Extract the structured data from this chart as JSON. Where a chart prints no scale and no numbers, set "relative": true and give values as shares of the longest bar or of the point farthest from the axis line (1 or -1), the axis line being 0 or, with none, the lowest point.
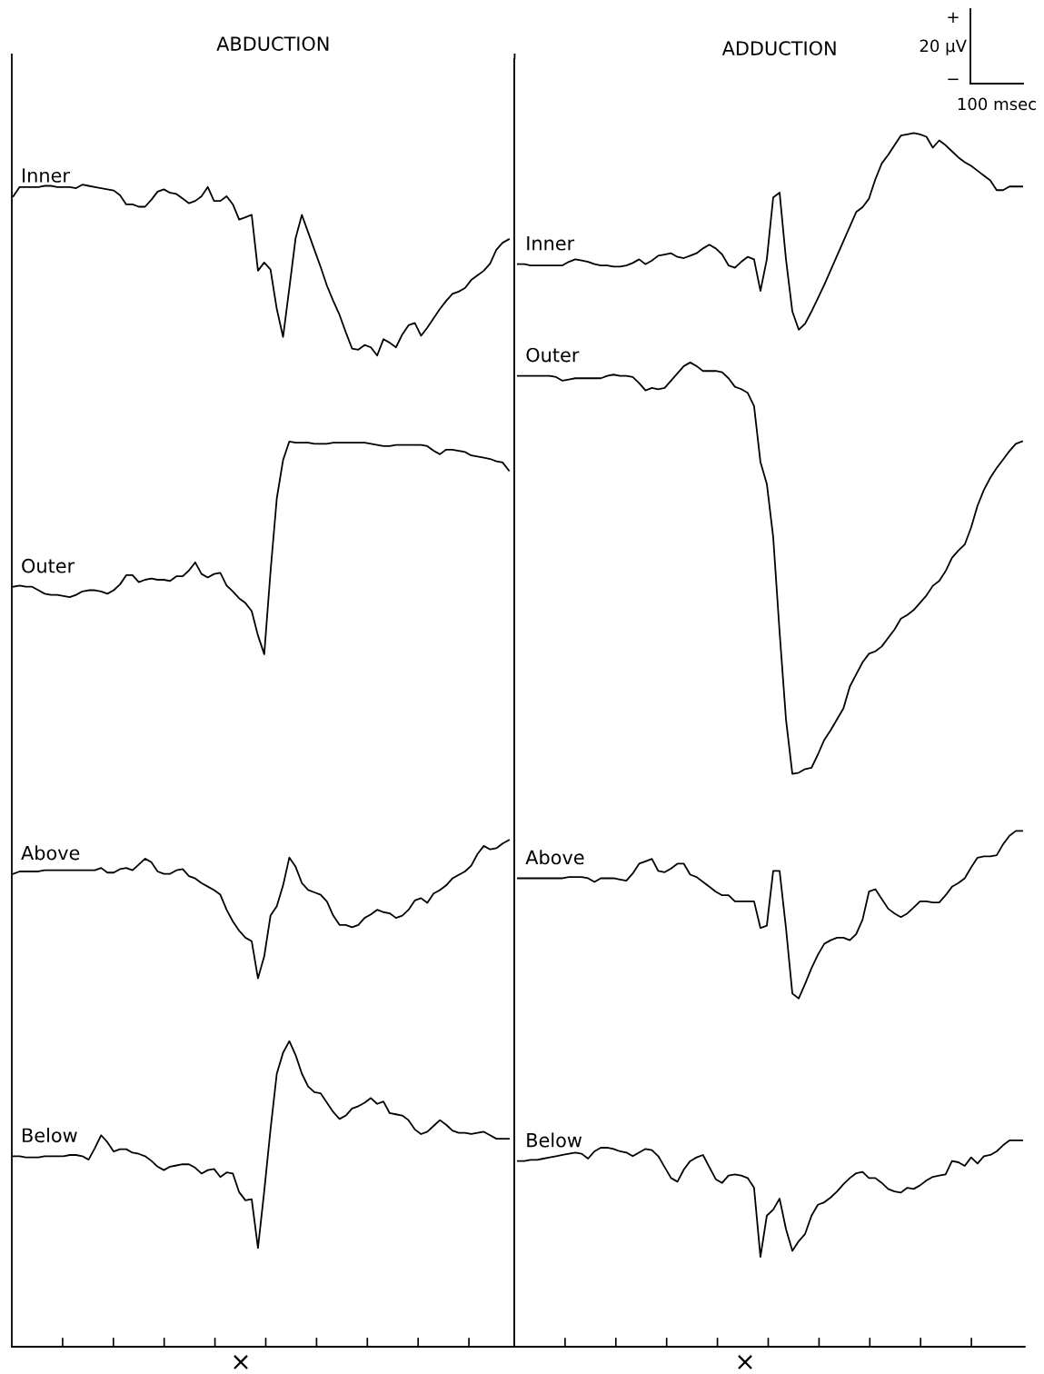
{
  "chart_data": [
    {
      "type": "line",
      "title": "ABDUCTION",
      "relative": true,
      "marker": "none",
      "line_style": "solid",
      "annotations": [
        "×"
      ],
      "categories": [
        null,
        null,
        null,
        null,
        null,
        null,
        null,
        null,
        null,
        null,
        null,
        null,
        null,
        null,
        null,
        null,
        null,
        null,
        null,
        null,
        null,
        null,
        null,
        null,
        null,
        null,
        null,
        null,
        null,
        null,
        null,
        null,
        null,
        null,
        null,
        null,
        null,
        null,
        null,
        null,
        null,
        null,
        null,
        null,
        null,
        null,
        null,
        null,
        null,
        null,
        null,
        null,
        null,
        null,
        null,
        null,
        null,
        null,
        null,
        null,
        null,
        null,
        null,
        null,
        null,
        null,
        null,
        null,
        null,
        null,
        null,
        null,
        null,
        null,
        null,
        null,
        null,
        null,
        null,
        null
      ],
      "series": [
        {
          "name": "Inner",
          "color": "#000000",
          "values": [
            0.99,
            0.998,
            0.998,
            0.998,
            0.998,
            0.999,
            0.999,
            0.998,
            0.998,
            0.998,
            0.997,
            1.0,
            0.999,
            0.998,
            0.997,
            0.996,
            0.995,
            0.991,
            0.983,
            0.983,
            0.981,
            0.981,
            0.987,
            0.994,
            0.996,
            0.993,
            0.992,
            0.988,
            0.984,
            0.986,
            0.99,
            0.998,
            0.986,
            0.986,
            0.99,
            0.983,
            0.97,
            0.972,
            0.974,
            0.926,
            0.933,
            0.927,
            0.893,
            0.869,
            0.911,
            0.954,
            0.974,
            0.959,
            0.944,
            0.929,
            0.913,
            0.9,
            0.888,
            0.873,
            0.859,
            0.858,
            0.862,
            0.86,
            0.853,
            0.867,
            0.864,
            0.86,
            0.871,
            0.879,
            0.881,
            0.87,
            0.877,
            0.885,
            0.893,
            0.9,
            0.906,
            0.908,
            0.911,
            0.918,
            0.922,
            0.926,
            0.932,
            0.944,
            0.95,
            0.953
          ]
        },
        {
          "name": "Outer",
          "color": "#000000",
          "values": [
            0.654,
            0.655,
            0.654,
            0.654,
            0.651,
            0.648,
            0.647,
            0.647,
            0.646,
            0.645,
            0.647,
            0.65,
            0.651,
            0.651,
            0.65,
            0.648,
            0.651,
            0.656,
            0.664,
            0.664,
            0.658,
            0.66,
            0.661,
            0.66,
            0.66,
            0.659,
            0.663,
            0.663,
            0.668,
            0.675,
            0.665,
            0.662,
            0.665,
            0.666,
            0.655,
            0.65,
            0.644,
            0.64,
            0.633,
            0.612,
            0.596,
            0.667,
            0.73,
            0.763,
            0.779,
            0.778,
            0.778,
            0.778,
            0.777,
            0.777,
            0.777,
            0.778,
            0.778,
            0.778,
            0.778,
            0.778,
            0.778,
            0.777,
            0.776,
            0.775,
            0.775,
            0.776,
            0.776,
            0.776,
            0.776,
            0.776,
            0.775,
            0.771,
            0.768,
            0.772,
            0.772,
            0.771,
            0.77,
            0.767,
            0.766,
            0.765,
            0.764,
            0.762,
            0.761,
            0.754
          ]
        },
        {
          "name": "Above",
          "color": "#000000",
          "values": [
            0.407,
            0.409,
            0.409,
            0.409,
            0.409,
            0.41,
            0.41,
            0.41,
            0.41,
            0.41,
            0.41,
            0.41,
            0.41,
            0.41,
            0.412,
            0.408,
            0.408,
            0.411,
            0.412,
            0.41,
            0.415,
            0.42,
            0.417,
            0.409,
            0.407,
            0.407,
            0.41,
            0.411,
            0.405,
            0.403,
            0.399,
            0.396,
            0.393,
            0.389,
            0.376,
            0.366,
            0.358,
            0.352,
            0.349,
            0.317,
            0.336,
            0.371,
            0.379,
            0.397,
            0.421,
            0.413,
            0.399,
            0.393,
            0.391,
            0.389,
            0.383,
            0.371,
            0.363,
            0.363,
            0.361,
            0.363,
            0.369,
            0.372,
            0.376,
            0.374,
            0.373,
            0.369,
            0.371,
            0.376,
            0.384,
            0.386,
            0.382,
            0.39,
            0.393,
            0.397,
            0.403,
            0.406,
            0.409,
            0.414,
            0.424,
            0.431,
            0.428,
            0.429,
            0.433,
            0.436
          ]
        },
        {
          "name": "Below",
          "color": "#000000",
          "values": [
            0.164,
            0.164,
            0.163,
            0.163,
            0.163,
            0.164,
            0.164,
            0.164,
            0.164,
            0.165,
            0.165,
            0.164,
            0.161,
            0.171,
            0.182,
            0.176,
            0.168,
            0.17,
            0.17,
            0.167,
            0.166,
            0.164,
            0.16,
            0.155,
            0.152,
            0.155,
            0.156,
            0.157,
            0.157,
            0.154,
            0.149,
            0.152,
            0.153,
            0.146,
            0.15,
            0.149,
            0.133,
            0.126,
            0.127,
            0.085,
            0.134,
            0.187,
            0.235,
            0.253,
            0.263,
            0.251,
            0.235,
            0.224,
            0.219,
            0.218,
            0.21,
            0.202,
            0.196,
            0.199,
            0.205,
            0.207,
            0.21,
            0.214,
            0.209,
            0.211,
            0.201,
            0.2,
            0.199,
            0.195,
            0.187,
            0.183,
            0.185,
            0.19,
            0.195,
            0.191,
            0.186,
            0.184,
            0.184,
            0.183,
            0.184,
            0.185,
            0.182,
            0.179,
            0.179,
            0.179
          ]
        }
      ]
    },
    {
      "type": "line",
      "title": "ADDUCTION",
      "relative": true,
      "marker": "none",
      "line_style": "solid",
      "annotations": [
        "×",
        "+",
        "20 µV",
        "−",
        "100 msec"
      ],
      "categories": [
        null,
        null,
        null,
        null,
        null,
        null,
        null,
        null,
        null,
        null,
        null,
        null,
        null,
        null,
        null,
        null,
        null,
        null,
        null,
        null,
        null,
        null,
        null,
        null,
        null,
        null,
        null,
        null,
        null,
        null,
        null,
        null,
        null,
        null,
        null,
        null,
        null,
        null,
        null,
        null,
        null,
        null,
        null,
        null,
        null,
        null,
        null,
        null,
        null,
        null,
        null,
        null,
        null,
        null,
        null,
        null,
        null,
        null,
        null,
        null,
        null,
        null,
        null,
        null,
        null,
        null,
        null,
        null,
        null,
        null,
        null,
        null,
        null,
        null,
        null,
        null,
        null,
        null,
        null,
        null
      ],
      "series": [
        {
          "name": "Inner",
          "color": "#000000",
          "values": [
            0.892,
            0.892,
            0.891,
            0.891,
            0.891,
            0.891,
            0.891,
            0.891,
            0.894,
            0.896,
            0.895,
            0.894,
            0.892,
            0.891,
            0.891,
            0.89,
            0.89,
            0.891,
            0.893,
            0.896,
            0.892,
            0.895,
            0.899,
            0.9,
            0.901,
            0.898,
            0.897,
            0.899,
            0.901,
            0.905,
            0.908,
            0.905,
            0.9,
            0.891,
            0.889,
            0.894,
            0.898,
            0.896,
            0.87,
            0.896,
            0.947,
            0.951,
            0.896,
            0.853,
            0.838,
            0.843,
            0.853,
            0.864,
            0.875,
            0.887,
            0.899,
            0.911,
            0.923,
            0.935,
            0.939,
            0.946,
            0.962,
            0.975,
            0.982,
            0.99,
            0.998,
            0.999,
            1.0,
            0.999,
            0.997,
            0.988,
            0.994,
            0.99,
            0.985,
            0.98,
            0.976,
            0.973,
            0.969,
            0.965,
            0.961,
            0.953,
            0.953,
            0.956,
            0.956,
            0.956
          ]
        },
        {
          "name": "Outer",
          "color": "#000000",
          "values": [
            0.8,
            0.8,
            0.8,
            0.8,
            0.8,
            0.8,
            0.799,
            0.796,
            0.797,
            0.798,
            0.798,
            0.798,
            0.798,
            0.798,
            0.8,
            0.801,
            0.8,
            0.8,
            0.799,
            0.794,
            0.788,
            0.79,
            0.789,
            0.79,
            0.796,
            0.802,
            0.808,
            0.811,
            0.808,
            0.804,
            0.804,
            0.804,
            0.803,
            0.798,
            0.791,
            0.789,
            0.786,
            0.775,
            0.729,
            0.711,
            0.667,
            0.589,
            0.517,
            0.472,
            0.473,
            0.476,
            0.477,
            0.488,
            0.5,
            0.508,
            0.517,
            0.526,
            0.544,
            0.554,
            0.564,
            0.571,
            0.573,
            0.577,
            0.584,
            0.591,
            0.6,
            0.603,
            0.607,
            0.613,
            0.619,
            0.627,
            0.631,
            0.639,
            0.65,
            0.656,
            0.661,
            0.675,
            0.693,
            0.706,
            0.716,
            0.724,
            0.731,
            0.738,
            0.744,
            0.746
          ]
        },
        {
          "name": "Above",
          "color": "#000000",
          "values": [
            0.386,
            0.386,
            0.386,
            0.386,
            0.386,
            0.386,
            0.386,
            0.386,
            0.387,
            0.387,
            0.387,
            0.386,
            0.383,
            0.386,
            0.386,
            0.386,
            0.385,
            0.384,
            0.39,
            0.398,
            0.4,
            0.402,
            0.392,
            0.391,
            0.394,
            0.398,
            0.398,
            0.389,
            0.387,
            0.383,
            0.379,
            0.375,
            0.372,
            0.372,
            0.367,
            0.367,
            0.367,
            0.367,
            0.345,
            0.347,
            0.392,
            0.392,
            0.345,
            0.291,
            0.287,
            0.299,
            0.312,
            0.323,
            0.332,
            0.335,
            0.337,
            0.337,
            0.335,
            0.34,
            0.352,
            0.375,
            0.377,
            0.369,
            0.361,
            0.357,
            0.354,
            0.357,
            0.362,
            0.367,
            0.367,
            0.366,
            0.366,
            0.372,
            0.379,
            0.382,
            0.386,
            0.395,
            0.403,
            0.404,
            0.404,
            0.405,
            0.414,
            0.421,
            0.425,
            0.425
          ]
        },
        {
          "name": "Below",
          "color": "#000000",
          "values": [
            0.153,
            0.153,
            0.154,
            0.154,
            0.155,
            0.156,
            0.157,
            0.158,
            0.159,
            0.16,
            0.159,
            0.155,
            0.161,
            0.164,
            0.164,
            0.163,
            0.161,
            0.16,
            0.157,
            0.16,
            0.163,
            0.162,
            0.157,
            0.148,
            0.139,
            0.136,
            0.146,
            0.153,
            0.156,
            0.158,
            0.148,
            0.138,
            0.135,
            0.141,
            0.142,
            0.141,
            0.139,
            0.131,
            0.074,
            0.108,
            0.113,
            0.122,
            0.097,
            0.079,
            0.087,
            0.093,
            0.108,
            0.117,
            0.119,
            0.123,
            0.128,
            0.134,
            0.139,
            0.143,
            0.144,
            0.139,
            0.139,
            0.135,
            0.13,
            0.128,
            0.127,
            0.131,
            0.13,
            0.133,
            0.137,
            0.14,
            0.141,
            0.142,
            0.153,
            0.152,
            0.149,
            0.156,
            0.151,
            0.157,
            0.158,
            0.161,
            0.166,
            0.17,
            0.17,
            0.17
          ]
        }
      ]
    }
  ]
}
